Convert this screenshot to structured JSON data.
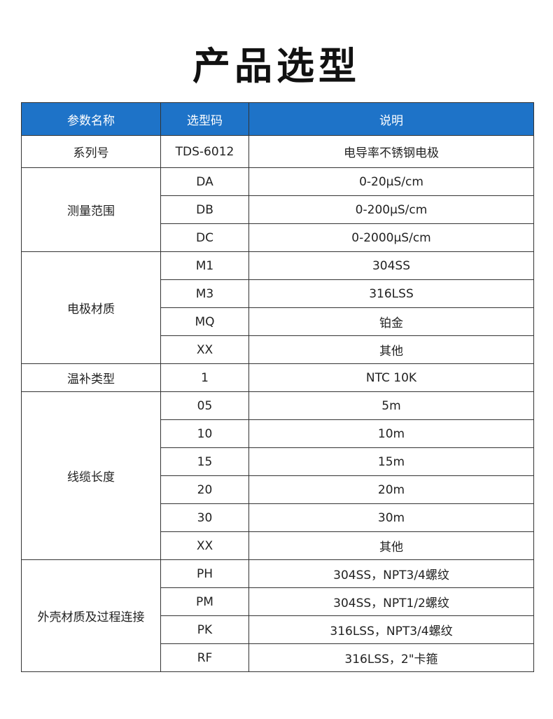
{
  "title": "产品选型",
  "colors": {
    "header_bg": "#1e73c8"
  },
  "table": {
    "headers": [
      "参数名称",
      "选型码",
      "说明"
    ],
    "groups": [
      {
        "param": "系列号",
        "rows": [
          [
            "TDS-6012",
            "电导率不锈钢电极"
          ]
        ]
      },
      {
        "param": "测量范围",
        "rows": [
          [
            "DA",
            "0-20μS/cm"
          ],
          [
            "DB",
            "0-200μS/cm"
          ],
          [
            "DC",
            "0-2000μS/cm"
          ]
        ]
      },
      {
        "param": "电极材质",
        "rows": [
          [
            "M1",
            "304SS"
          ],
          [
            "M3",
            "316LSS"
          ],
          [
            "MQ",
            "铂金"
          ],
          [
            "XX",
            "其他"
          ]
        ]
      },
      {
        "param": "温补类型",
        "rows": [
          [
            "1",
            "NTC 10K"
          ]
        ]
      },
      {
        "param": "线缆长度",
        "rows": [
          [
            "05",
            "5m"
          ],
          [
            "10",
            "10m"
          ],
          [
            "15",
            "15m"
          ],
          [
            "20",
            "20m"
          ],
          [
            "30",
            "30m"
          ],
          [
            "XX",
            "其他"
          ]
        ]
      },
      {
        "param": "外壳材质及过程连接",
        "rows": [
          [
            "PH",
            "304SS，NPT3/4螺纹"
          ],
          [
            "PM",
            "304SS，NPT1/2螺纹"
          ],
          [
            "PK",
            "316LSS，NPT3/4螺纹"
          ],
          [
            "RF",
            "316LSS，2\"卡箍"
          ]
        ]
      }
    ]
  }
}
